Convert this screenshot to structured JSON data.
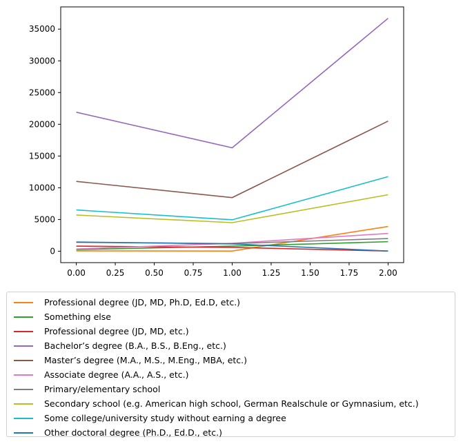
{
  "chart_data": {
    "type": "line",
    "title": "",
    "xlabel": "",
    "ylabel": "",
    "x": [
      0,
      1,
      2
    ],
    "xlim": [
      -0.1,
      2.1
    ],
    "ylim": [
      -1800,
      38500
    ],
    "xticks": [
      0.0,
      0.25,
      0.5,
      0.75,
      1.0,
      1.25,
      1.5,
      1.75,
      2.0
    ],
    "xtick_labels": [
      "0.00",
      "0.25",
      "0.50",
      "0.75",
      "1.00",
      "1.25",
      "1.50",
      "1.75",
      "2.00"
    ],
    "yticks": [
      0,
      5000,
      10000,
      15000,
      20000,
      25000,
      30000,
      35000
    ],
    "ytick_labels": [
      "0",
      "5000",
      "10000",
      "15000",
      "20000",
      "25000",
      "30000",
      "35000"
    ],
    "legend_position": "below",
    "series": [
      {
        "name": "Professional degree (JD, MD, Ph.D, Ed.D, etc.)",
        "color": "#ff7f0e",
        "values": [
          50,
          30,
          3900
        ]
      },
      {
        "name": "Something else",
        "color": "#2ca02c",
        "values": [
          250,
          800,
          1500
        ]
      },
      {
        "name": "Professional degree (JD, MD, etc.)",
        "color": "#d62728",
        "values": [
          800,
          600,
          30
        ]
      },
      {
        "name": "Bachelor’s degree (B.A., B.S., B.Eng., etc.)",
        "color": "#9467bd",
        "values": [
          21900,
          16300,
          36700
        ]
      },
      {
        "name": "Master’s degree (M.A., M.S., M.Eng., MBA, etc.)",
        "color": "#8c564b",
        "values": [
          11000,
          8450,
          20500
        ]
      },
      {
        "name": "Associate degree (A.A., A.S., etc.)",
        "color": "#e377c2",
        "values": [
          350,
          1250,
          2800
        ]
      },
      {
        "name": "Primary/elementary school",
        "color": "#7f7f7f",
        "values": [
          1400,
          1200,
          2000
        ]
      },
      {
        "name": "Secondary school (e.g. American high school, German Realschule or Gymnasium, etc.)",
        "color": "#bcbd22",
        "values": [
          5700,
          4500,
          8900
        ]
      },
      {
        "name": "Some college/university study without earning a degree",
        "color": "#17becf",
        "values": [
          6500,
          4950,
          11750
        ]
      },
      {
        "name": "Other doctoral degree (Ph.D., Ed.D., etc.)",
        "color": "#1f77b4",
        "values": [
          1450,
          1150,
          30
        ]
      }
    ]
  }
}
